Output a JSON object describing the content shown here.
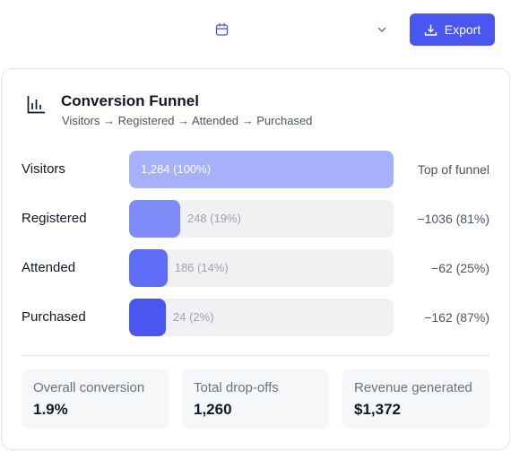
{
  "header": {
    "export_label": "Export"
  },
  "card": {
    "title": "Conversion Funnel",
    "subtitle": "Visitors → Registered → Attended → Purchased"
  },
  "stages": [
    {
      "name": "Visitors",
      "value": 1284,
      "value_label": "1,284 (100%)",
      "note": "Top of funnel",
      "color": "#a6b0fb"
    },
    {
      "name": "Registered",
      "value": 248,
      "value_label": "248 (19%)",
      "note": "−1036 (81%)",
      "color": "#7f8bf8"
    },
    {
      "name": "Attended",
      "value": 186,
      "value_label": "186 (14%)",
      "note": "−62 (25%)",
      "color": "#5f6cf5"
    },
    {
      "name": "Purchased",
      "value": 24,
      "value_label": "24 (2%)",
      "note": "−162 (87%)",
      "color": "#4a56f0"
    }
  ],
  "stats": [
    {
      "label": "Overall conversion",
      "value": "1.9%"
    },
    {
      "label": "Total drop-offs",
      "value": "1,260"
    },
    {
      "label": "Revenue generated",
      "value": "$1,372"
    }
  ]
}
